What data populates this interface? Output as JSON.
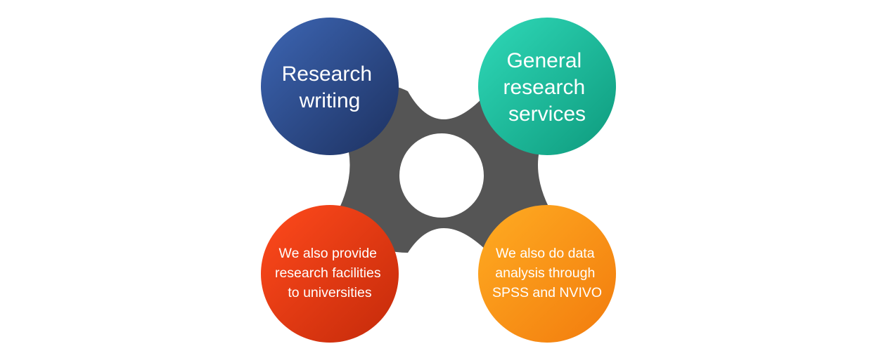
{
  "diagram": {
    "colors": {
      "connector": "#555555",
      "center": "#ffffff",
      "top_left": [
        "#3d66b4",
        "#1d3160"
      ],
      "top_right": [
        "#2fd9b8",
        "#0e9a7d"
      ],
      "bottom_left": [
        "#ff4a1c",
        "#c42a0a"
      ],
      "bottom_right": [
        "#ffac22",
        "#f27b0d"
      ]
    },
    "nodes": {
      "top_left": {
        "lines": [
          "Research",
          "writing"
        ]
      },
      "top_right": {
        "lines": [
          "General",
          "research",
          "services"
        ]
      },
      "bottom_left": {
        "lines": [
          "We also provide",
          "research facilities",
          "to universities"
        ]
      },
      "bottom_right": {
        "lines": [
          "We also do data",
          "analysis through",
          "SPSS and NVIVO"
        ]
      }
    }
  }
}
